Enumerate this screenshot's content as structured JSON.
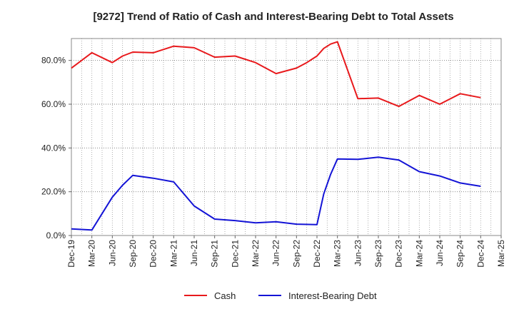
{
  "chart_data": {
    "type": "line",
    "title": "[9272]  Trend of Ratio of Cash and Interest-Bearing Debt to Total Assets",
    "xlabel": "",
    "ylabel": "",
    "ylim": [
      0,
      90
    ],
    "y_ticks": [
      0,
      20,
      40,
      60,
      80
    ],
    "y_tick_labels": [
      "0.0%",
      "20.0%",
      "40.0%",
      "60.0%",
      "80.0%"
    ],
    "grid": true,
    "legend_position": "bottom",
    "categories": [
      "Dec-19",
      "Mar-20",
      "Jun-20",
      "Sep-20",
      "Dec-20",
      "Mar-21",
      "Jun-21",
      "Sep-21",
      "Dec-21",
      "Mar-22",
      "Jun-22",
      "Sep-22",
      "Dec-22",
      "Mar-23",
      "Jun-23",
      "Sep-23",
      "Dec-23",
      "Mar-24",
      "Jun-24",
      "Sep-24",
      "Dec-24",
      "Mar-25"
    ],
    "series": [
      {
        "name": "Cash",
        "color": "#e8191c",
        "points": [
          [
            0,
            76.5
          ],
          [
            1,
            83.5
          ],
          [
            2,
            79
          ],
          [
            2.5,
            82
          ],
          [
            3,
            83.8
          ],
          [
            4,
            83.5
          ],
          [
            5,
            86.5
          ],
          [
            6,
            85.8
          ],
          [
            7,
            81.5
          ],
          [
            8,
            82
          ],
          [
            9,
            79
          ],
          [
            10,
            74
          ],
          [
            11,
            76.5
          ],
          [
            11.5,
            79
          ],
          [
            12,
            82
          ],
          [
            12.33,
            85.5
          ],
          [
            12.67,
            87.5
          ],
          [
            13,
            88.5
          ],
          [
            14,
            62.5
          ],
          [
            15,
            62.8
          ],
          [
            16,
            59
          ],
          [
            17,
            64
          ],
          [
            18,
            60
          ],
          [
            19,
            64.8
          ],
          [
            20,
            63
          ],
          [
            21,
            null
          ]
        ]
      },
      {
        "name": "Interest-Bearing Debt",
        "color": "#1414d6",
        "points": [
          [
            0,
            3
          ],
          [
            1,
            2.5
          ],
          [
            2,
            17.5
          ],
          [
            2.5,
            23
          ],
          [
            3,
            27.5
          ],
          [
            4,
            26.2
          ],
          [
            5,
            24.5
          ],
          [
            6,
            13.5
          ],
          [
            7,
            7.5
          ],
          [
            8,
            6.8
          ],
          [
            9,
            5.8
          ],
          [
            10,
            6.3
          ],
          [
            11,
            5.2
          ],
          [
            12,
            5
          ],
          [
            12.33,
            19
          ],
          [
            12.67,
            28
          ],
          [
            13,
            35
          ],
          [
            14,
            34.8
          ],
          [
            15,
            35.8
          ],
          [
            16,
            34.5
          ],
          [
            17,
            29.2
          ],
          [
            18,
            27.2
          ],
          [
            19,
            24
          ],
          [
            20,
            22.5
          ],
          [
            21,
            null
          ]
        ]
      }
    ]
  }
}
